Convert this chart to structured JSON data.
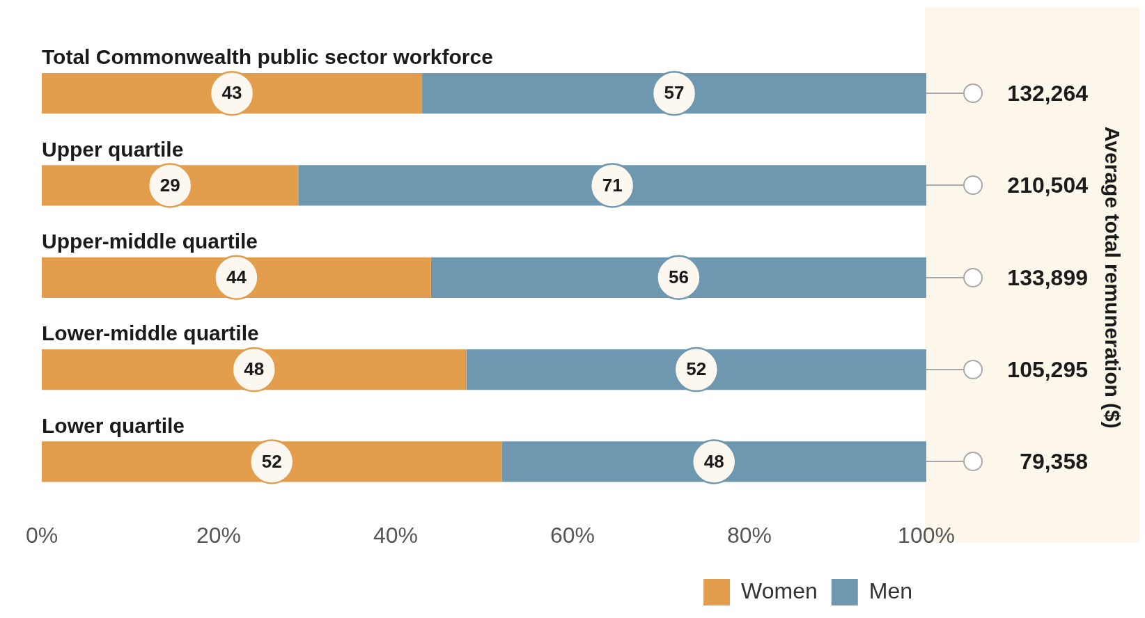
{
  "chart_data": {
    "type": "bar",
    "orientation": "horizontal",
    "stacked": true,
    "categories": [
      "Total Commonwealth public sector workforce",
      "Upper quartile",
      "Upper-middle quartile",
      "Lower-middle quartile",
      "Lower quartile"
    ],
    "series": [
      {
        "name": "Women",
        "color": "#e29e4c",
        "values": [
          43,
          29,
          44,
          48,
          52
        ]
      },
      {
        "name": "Men",
        "color": "#6e97b0",
        "values": [
          57,
          71,
          56,
          52,
          48
        ]
      }
    ],
    "xlim": [
      0,
      100
    ],
    "xticks": [
      {
        "value": 0,
        "label": "0%"
      },
      {
        "value": 20,
        "label": "20%"
      },
      {
        "value": 40,
        "label": "40%"
      },
      {
        "value": 60,
        "label": "60%"
      },
      {
        "value": 80,
        "label": "80%"
      },
      {
        "value": 100,
        "label": "100%"
      }
    ],
    "data_labels": true,
    "annotations": [
      "132,264",
      "210,504",
      "133,899",
      "105,295",
      "79,358",
      "Average total remuneration ($)"
    ],
    "grid": false,
    "legend": "bottom right"
  }
}
